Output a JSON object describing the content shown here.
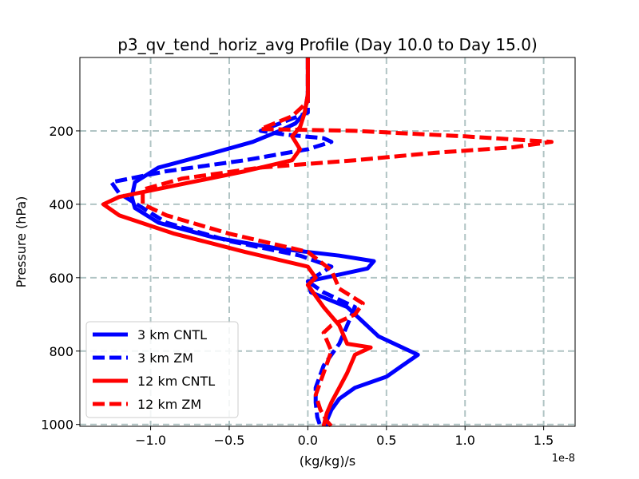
{
  "chart_data": {
    "type": "line",
    "title": "p3_qv_tend_horiz_avg Profile (Day 10.0 to Day 15.0)",
    "xlabel": "(kg/kg)/s",
    "ylabel": "Pressure (hPa)",
    "x_offset_label": "1e-8",
    "xlim": [
      -1.45,
      1.7
    ],
    "ylim": [
      1005,
      0
    ],
    "x_ticks": [
      -1.0,
      -0.5,
      0.0,
      0.5,
      1.0,
      1.5
    ],
    "x_tick_labels": [
      "−1.0",
      "−0.5",
      "0.0",
      "0.5",
      "1.0",
      "1.5"
    ],
    "y_ticks": [
      200,
      400,
      600,
      800,
      1000
    ],
    "y_tick_labels": [
      "200",
      "400",
      "600",
      "800",
      "1000"
    ],
    "grid": true,
    "legend_position": "lower-left",
    "series": [
      {
        "name": "3 km CNTL",
        "color": "#0000ff",
        "dash": "solid",
        "x": [
          0.0,
          0.0,
          -0.02,
          -0.08,
          -0.18,
          -0.35,
          -0.6,
          -0.95,
          -1.1,
          -1.12,
          -1.1,
          -0.95,
          -0.6,
          -0.2,
          0.2,
          0.42,
          0.38,
          0.0,
          0.02,
          0.25,
          0.35,
          0.45,
          0.6,
          0.7,
          0.6,
          0.5,
          0.3,
          0.2,
          0.15,
          0.12,
          0.12
        ],
        "y": [
          0,
          100,
          150,
          180,
          200,
          230,
          260,
          300,
          340,
          380,
          410,
          450,
          490,
          520,
          540,
          555,
          575,
          610,
          640,
          680,
          720,
          760,
          790,
          810,
          840,
          870,
          900,
          930,
          960,
          990,
          1005
        ]
      },
      {
        "name": "3 km ZM",
        "color": "#0000ff",
        "dash": "dashed",
        "x": [
          0.0,
          0.0,
          -0.3,
          -0.15,
          0.1,
          0.15,
          0.0,
          -0.4,
          -0.9,
          -1.25,
          -1.2,
          -1.05,
          -0.9,
          -0.5,
          -0.05,
          0.15,
          0.0,
          0.1,
          0.3,
          0.2,
          0.1,
          0.05,
          0.05,
          0.06,
          0.08
        ],
        "y": [
          0,
          150,
          200,
          210,
          220,
          230,
          250,
          280,
          310,
          340,
          370,
          410,
          450,
          500,
          540,
          570,
          610,
          640,
          680,
          780,
          840,
          900,
          940,
          980,
          1005
        ]
      },
      {
        "name": "12 km CNTL",
        "color": "#ff0000",
        "dash": "solid",
        "x": [
          0.0,
          0.0,
          -0.02,
          -0.05,
          -0.1,
          -0.05,
          -0.1,
          -0.4,
          -0.8,
          -1.2,
          -1.3,
          -1.2,
          -0.85,
          -0.4,
          0.0,
          0.05,
          0.0,
          0.1,
          0.2,
          0.25,
          0.4,
          0.3,
          0.25,
          0.2,
          0.15,
          0.12,
          0.1
        ],
        "y": [
          0,
          100,
          150,
          190,
          215,
          250,
          280,
          310,
          345,
          380,
          400,
          430,
          480,
          530,
          570,
          600,
          620,
          680,
          730,
          780,
          790,
          810,
          860,
          900,
          940,
          970,
          1005
        ]
      },
      {
        "name": "12 km ZM",
        "color": "#ff0000",
        "dash": "dashed",
        "x": [
          0.0,
          0.0,
          -0.1,
          -0.3,
          0.3,
          1.0,
          1.55,
          1.3,
          0.8,
          0.3,
          -0.3,
          -0.8,
          -1.05,
          -1.05,
          -0.9,
          -0.5,
          0.0,
          0.15,
          0.2,
          0.35,
          0.3,
          0.15,
          0.1,
          0.15,
          0.1,
          0.05,
          0.08,
          0.12,
          0.15
        ],
        "y": [
          0,
          120,
          160,
          195,
          200,
          215,
          230,
          245,
          260,
          280,
          300,
          330,
          360,
          400,
          430,
          480,
          530,
          580,
          630,
          670,
          700,
          730,
          750,
          800,
          860,
          920,
          960,
          990,
          1005
        ]
      }
    ]
  }
}
